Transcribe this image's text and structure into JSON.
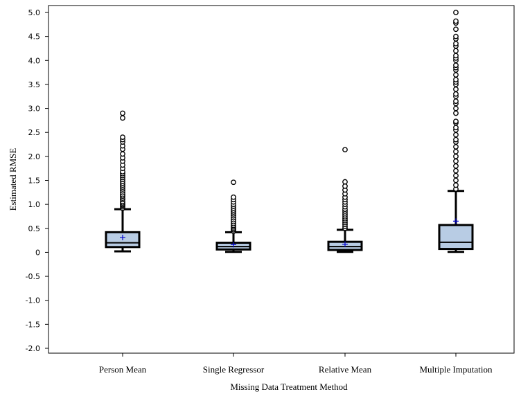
{
  "chart_data": {
    "type": "box",
    "xlabel": "Missing Data Treatment Method",
    "ylabel": "Estimated RMSE",
    "ylim": [
      -2.0,
      5.0
    ],
    "yticks": [
      "5.0",
      "4.5",
      "4.0",
      "3.5",
      "3.0",
      "2.5",
      "2.0",
      "1.5",
      "1.0",
      "0.5",
      "0",
      "-0.5",
      "-1.0",
      "-1.5",
      "-2.0"
    ],
    "yticks_values": [
      5.0,
      4.5,
      4.0,
      3.5,
      3.0,
      2.5,
      2.0,
      1.5,
      1.0,
      0.5,
      0,
      -0.5,
      -1.0,
      -1.5,
      -2.0
    ],
    "grid": false,
    "colors": {
      "box_fill": "#b8cce4",
      "mean_marker": "#0000cc",
      "stroke": "#000000"
    },
    "categories": [
      "Person Mean",
      "Single Regressor",
      "Relative Mean",
      "Multiple Imputation"
    ],
    "boxes": [
      {
        "category": "Person Mean",
        "min": 0.02,
        "q1": 0.11,
        "median": 0.2,
        "q3": 0.42,
        "whisker_high": 0.9,
        "mean": 0.31,
        "outliers": [
          0.92,
          0.95,
          0.98,
          1.0,
          1.03,
          1.06,
          1.1,
          1.13,
          1.17,
          1.2,
          1.24,
          1.28,
          1.32,
          1.36,
          1.4,
          1.44,
          1.48,
          1.52,
          1.56,
          1.6,
          1.64,
          1.68,
          1.75,
          1.82,
          1.9,
          1.97,
          2.05,
          2.15,
          2.22,
          2.3,
          2.35,
          2.4,
          2.8,
          2.9
        ]
      },
      {
        "category": "Single Regressor",
        "min": 0.01,
        "q1": 0.06,
        "median": 0.12,
        "q3": 0.2,
        "whisker_high": 0.42,
        "mean": 0.16,
        "outliers": [
          0.44,
          0.47,
          0.5,
          0.53,
          0.56,
          0.6,
          0.64,
          0.68,
          0.72,
          0.76,
          0.8,
          0.84,
          0.88,
          0.92,
          0.96,
          1.0,
          1.05,
          1.1,
          1.15,
          1.46
        ]
      },
      {
        "category": "Relative Mean",
        "min": 0.01,
        "q1": 0.05,
        "median": 0.12,
        "q3": 0.22,
        "whisker_high": 0.47,
        "mean": 0.17,
        "outliers": [
          0.5,
          0.54,
          0.58,
          0.62,
          0.66,
          0.7,
          0.74,
          0.78,
          0.82,
          0.86,
          0.9,
          0.95,
          1.0,
          1.05,
          1.1,
          1.15,
          1.22,
          1.3,
          1.38,
          1.47,
          2.14
        ]
      },
      {
        "category": "Multiple Imputation",
        "min": 0.01,
        "q1": 0.07,
        "median": 0.21,
        "q3": 0.57,
        "whisker_high": 1.28,
        "mean": 0.65,
        "outliers": [
          1.32,
          1.4,
          1.5,
          1.6,
          1.7,
          1.8,
          1.9,
          2.0,
          2.1,
          2.2,
          2.3,
          2.35,
          2.45,
          2.55,
          2.6,
          2.7,
          2.73,
          2.9,
          3.0,
          3.1,
          3.15,
          3.25,
          3.3,
          3.4,
          3.5,
          3.55,
          3.6,
          3.7,
          3.8,
          3.85,
          3.9,
          4.0,
          4.05,
          4.1,
          4.2,
          4.3,
          4.35,
          4.45,
          4.5,
          4.65,
          4.78,
          4.82,
          5.0
        ]
      }
    ]
  }
}
